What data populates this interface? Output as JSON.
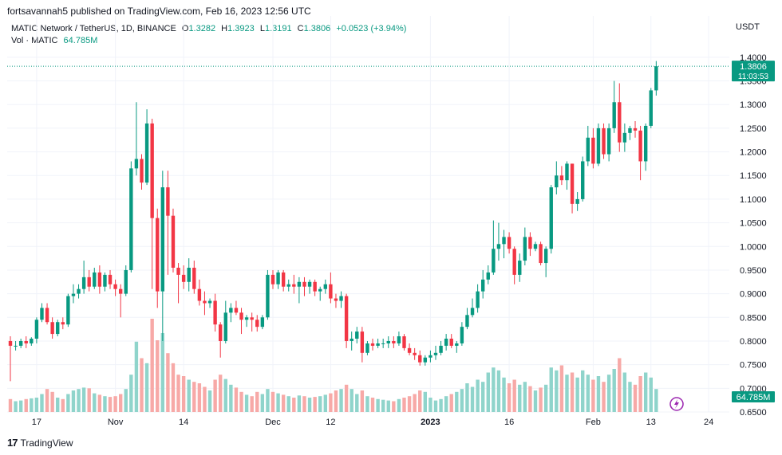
{
  "header": {
    "publisher_line": "fortsavannah5 published on TradingView.com, Feb 16, 2023 12:56 UTC"
  },
  "legend": {
    "symbol": "MATIC Network / TetherUS, 1D, BINANCE",
    "open_label": "O",
    "open": "1.3282",
    "high_label": "H",
    "high": "1.3923",
    "low_label": "L",
    "low": "1.3191",
    "close_label": "C",
    "close": "1.3806",
    "change": "+0.0523 (+3.94%)",
    "vol_label": "Vol · MATIC",
    "vol_value": "64.785M"
  },
  "currency": "USDT",
  "price_tag": {
    "price": "1.3806",
    "countdown": "11:03:53"
  },
  "volume_tag": "64.785M",
  "footer": {
    "brand": "TradingView",
    "logo": "17"
  },
  "colors": {
    "up": "#089981",
    "down": "#f23645",
    "vol_up": "#8fd4cb",
    "vol_down": "#f7a9a7",
    "grid": "#f0f3fa",
    "text": "#131722"
  },
  "chart_data": {
    "type": "candlestick",
    "ylim": [
      0.65,
      1.42
    ],
    "y_ticks": [
      "1.4000",
      "1.3500",
      "1.3000",
      "1.2500",
      "1.2000",
      "1.1500",
      "1.1000",
      "1.0500",
      "1.0000",
      "0.9500",
      "0.9000",
      "0.8500",
      "0.8000",
      "0.7500",
      "0.7000",
      "0.6500"
    ],
    "x_ticks": [
      {
        "label": "17",
        "index": 5
      },
      {
        "label": "Nov",
        "index": 20
      },
      {
        "label": "14",
        "index": 33
      },
      {
        "label": "Dec",
        "index": 50
      },
      {
        "label": "12",
        "index": 61
      },
      {
        "label": "2023",
        "index": 80
      },
      {
        "label": "16",
        "index": 95
      },
      {
        "label": "Feb",
        "index": 111
      },
      {
        "label": "13",
        "index": 122
      },
      {
        "label": "24",
        "index": 133
      }
    ],
    "candles": [
      {
        "o": 0.8,
        "h": 0.81,
        "l": 0.715,
        "c": 0.79,
        "v": 0.18
      },
      {
        "o": 0.79,
        "h": 0.8,
        "l": 0.78,
        "c": 0.79,
        "v": 0.15
      },
      {
        "o": 0.79,
        "h": 0.805,
        "l": 0.785,
        "c": 0.8,
        "v": 0.16
      },
      {
        "o": 0.8,
        "h": 0.81,
        "l": 0.785,
        "c": 0.795,
        "v": 0.18
      },
      {
        "o": 0.795,
        "h": 0.808,
        "l": 0.79,
        "c": 0.805,
        "v": 0.19
      },
      {
        "o": 0.805,
        "h": 0.85,
        "l": 0.795,
        "c": 0.845,
        "v": 0.2
      },
      {
        "o": 0.845,
        "h": 0.88,
        "l": 0.84,
        "c": 0.87,
        "v": 0.25
      },
      {
        "o": 0.87,
        "h": 0.88,
        "l": 0.835,
        "c": 0.84,
        "v": 0.32
      },
      {
        "o": 0.84,
        "h": 0.85,
        "l": 0.805,
        "c": 0.815,
        "v": 0.28
      },
      {
        "o": 0.815,
        "h": 0.845,
        "l": 0.81,
        "c": 0.84,
        "v": 0.2
      },
      {
        "o": 0.84,
        "h": 0.85,
        "l": 0.825,
        "c": 0.835,
        "v": 0.18
      },
      {
        "o": 0.835,
        "h": 0.9,
        "l": 0.83,
        "c": 0.895,
        "v": 0.25
      },
      {
        "o": 0.895,
        "h": 0.92,
        "l": 0.88,
        "c": 0.9,
        "v": 0.3
      },
      {
        "o": 0.9,
        "h": 0.92,
        "l": 0.89,
        "c": 0.91,
        "v": 0.32
      },
      {
        "o": 0.91,
        "h": 0.97,
        "l": 0.9,
        "c": 0.935,
        "v": 0.34
      },
      {
        "o": 0.935,
        "h": 0.95,
        "l": 0.905,
        "c": 0.915,
        "v": 0.33
      },
      {
        "o": 0.915,
        "h": 0.955,
        "l": 0.91,
        "c": 0.945,
        "v": 0.26
      },
      {
        "o": 0.945,
        "h": 0.96,
        "l": 0.9,
        "c": 0.915,
        "v": 0.24
      },
      {
        "o": 0.915,
        "h": 0.945,
        "l": 0.905,
        "c": 0.94,
        "v": 0.22
      },
      {
        "o": 0.94,
        "h": 0.95,
        "l": 0.91,
        "c": 0.92,
        "v": 0.21
      },
      {
        "o": 0.92,
        "h": 0.93,
        "l": 0.895,
        "c": 0.91,
        "v": 0.22
      },
      {
        "o": 0.91,
        "h": 0.92,
        "l": 0.85,
        "c": 0.9,
        "v": 0.25
      },
      {
        "o": 0.9,
        "h": 0.96,
        "l": 0.895,
        "c": 0.95,
        "v": 0.32
      },
      {
        "o": 0.95,
        "h": 1.18,
        "l": 0.945,
        "c": 1.165,
        "v": 0.52
      },
      {
        "o": 1.165,
        "h": 1.305,
        "l": 1.15,
        "c": 1.185,
        "v": 0.98
      },
      {
        "o": 1.185,
        "h": 1.195,
        "l": 1.12,
        "c": 1.135,
        "v": 0.75
      },
      {
        "o": 1.135,
        "h": 1.29,
        "l": 1.13,
        "c": 1.26,
        "v": 0.68
      },
      {
        "o": 1.26,
        "h": 1.27,
        "l": 0.91,
        "c": 1.06,
        "v": 1.3
      },
      {
        "o": 1.06,
        "h": 1.08,
        "l": 0.87,
        "c": 0.905,
        "v": 1.0
      },
      {
        "o": 0.905,
        "h": 1.16,
        "l": 0.8,
        "c": 1.125,
        "v": 1.1
      },
      {
        "o": 1.125,
        "h": 1.16,
        "l": 0.94,
        "c": 1.065,
        "v": 0.82
      },
      {
        "o": 1.065,
        "h": 1.08,
        "l": 0.945,
        "c": 0.955,
        "v": 0.68
      },
      {
        "o": 0.955,
        "h": 0.965,
        "l": 0.88,
        "c": 0.94,
        "v": 0.52
      },
      {
        "o": 0.94,
        "h": 0.96,
        "l": 0.91,
        "c": 0.925,
        "v": 0.5
      },
      {
        "o": 0.925,
        "h": 0.975,
        "l": 0.905,
        "c": 0.955,
        "v": 0.45
      },
      {
        "o": 0.955,
        "h": 0.97,
        "l": 0.9,
        "c": 0.91,
        "v": 0.42
      },
      {
        "o": 0.91,
        "h": 0.93,
        "l": 0.875,
        "c": 0.885,
        "v": 0.4
      },
      {
        "o": 0.885,
        "h": 0.905,
        "l": 0.855,
        "c": 0.88,
        "v": 0.35
      },
      {
        "o": 0.88,
        "h": 0.89,
        "l": 0.87,
        "c": 0.885,
        "v": 0.3
      },
      {
        "o": 0.885,
        "h": 0.9,
        "l": 0.82,
        "c": 0.835,
        "v": 0.45
      },
      {
        "o": 0.835,
        "h": 0.84,
        "l": 0.765,
        "c": 0.8,
        "v": 0.52
      },
      {
        "o": 0.8,
        "h": 0.885,
        "l": 0.795,
        "c": 0.86,
        "v": 0.46
      },
      {
        "o": 0.86,
        "h": 0.88,
        "l": 0.84,
        "c": 0.87,
        "v": 0.38
      },
      {
        "o": 0.87,
        "h": 0.885,
        "l": 0.855,
        "c": 0.86,
        "v": 0.34
      },
      {
        "o": 0.86,
        "h": 0.87,
        "l": 0.815,
        "c": 0.845,
        "v": 0.28
      },
      {
        "o": 0.845,
        "h": 0.855,
        "l": 0.83,
        "c": 0.85,
        "v": 0.24
      },
      {
        "o": 0.85,
        "h": 0.86,
        "l": 0.82,
        "c": 0.845,
        "v": 0.22
      },
      {
        "o": 0.845,
        "h": 0.855,
        "l": 0.82,
        "c": 0.83,
        "v": 0.28
      },
      {
        "o": 0.83,
        "h": 0.855,
        "l": 0.825,
        "c": 0.85,
        "v": 0.25
      },
      {
        "o": 0.85,
        "h": 0.95,
        "l": 0.845,
        "c": 0.94,
        "v": 0.32
      },
      {
        "o": 0.94,
        "h": 0.95,
        "l": 0.91,
        "c": 0.92,
        "v": 0.28
      },
      {
        "o": 0.92,
        "h": 0.95,
        "l": 0.91,
        "c": 0.945,
        "v": 0.26
      },
      {
        "o": 0.945,
        "h": 0.95,
        "l": 0.905,
        "c": 0.915,
        "v": 0.24
      },
      {
        "o": 0.915,
        "h": 0.93,
        "l": 0.905,
        "c": 0.92,
        "v": 0.22
      },
      {
        "o": 0.92,
        "h": 0.94,
        "l": 0.9,
        "c": 0.915,
        "v": 0.2
      },
      {
        "o": 0.915,
        "h": 0.935,
        "l": 0.88,
        "c": 0.925,
        "v": 0.23
      },
      {
        "o": 0.925,
        "h": 0.935,
        "l": 0.895,
        "c": 0.915,
        "v": 0.22
      },
      {
        "o": 0.915,
        "h": 0.93,
        "l": 0.9,
        "c": 0.925,
        "v": 0.2
      },
      {
        "o": 0.925,
        "h": 0.93,
        "l": 0.895,
        "c": 0.905,
        "v": 0.21
      },
      {
        "o": 0.905,
        "h": 0.915,
        "l": 0.885,
        "c": 0.91,
        "v": 0.22
      },
      {
        "o": 0.91,
        "h": 0.93,
        "l": 0.9,
        "c": 0.92,
        "v": 0.24
      },
      {
        "o": 0.92,
        "h": 0.945,
        "l": 0.88,
        "c": 0.89,
        "v": 0.26
      },
      {
        "o": 0.89,
        "h": 0.9,
        "l": 0.87,
        "c": 0.885,
        "v": 0.3
      },
      {
        "o": 0.885,
        "h": 0.905,
        "l": 0.87,
        "c": 0.895,
        "v": 0.32
      },
      {
        "o": 0.895,
        "h": 0.9,
        "l": 0.785,
        "c": 0.8,
        "v": 0.38
      },
      {
        "o": 0.8,
        "h": 0.82,
        "l": 0.78,
        "c": 0.805,
        "v": 0.32
      },
      {
        "o": 0.805,
        "h": 0.83,
        "l": 0.795,
        "c": 0.82,
        "v": 0.25
      },
      {
        "o": 0.82,
        "h": 0.83,
        "l": 0.755,
        "c": 0.775,
        "v": 0.3
      },
      {
        "o": 0.775,
        "h": 0.8,
        "l": 0.77,
        "c": 0.795,
        "v": 0.22
      },
      {
        "o": 0.795,
        "h": 0.805,
        "l": 0.78,
        "c": 0.79,
        "v": 0.2
      },
      {
        "o": 0.79,
        "h": 0.805,
        "l": 0.785,
        "c": 0.795,
        "v": 0.18
      },
      {
        "o": 0.795,
        "h": 0.805,
        "l": 0.785,
        "c": 0.795,
        "v": 0.17
      },
      {
        "o": 0.795,
        "h": 0.81,
        "l": 0.785,
        "c": 0.8,
        "v": 0.16
      },
      {
        "o": 0.8,
        "h": 0.81,
        "l": 0.785,
        "c": 0.795,
        "v": 0.15
      },
      {
        "o": 0.795,
        "h": 0.82,
        "l": 0.79,
        "c": 0.81,
        "v": 0.18
      },
      {
        "o": 0.81,
        "h": 0.815,
        "l": 0.78,
        "c": 0.785,
        "v": 0.2
      },
      {
        "o": 0.785,
        "h": 0.795,
        "l": 0.77,
        "c": 0.775,
        "v": 0.22
      },
      {
        "o": 0.775,
        "h": 0.785,
        "l": 0.76,
        "c": 0.77,
        "v": 0.25
      },
      {
        "o": 0.77,
        "h": 0.78,
        "l": 0.748,
        "c": 0.755,
        "v": 0.3
      },
      {
        "o": 0.755,
        "h": 0.77,
        "l": 0.748,
        "c": 0.765,
        "v": 0.28
      },
      {
        "o": 0.765,
        "h": 0.78,
        "l": 0.755,
        "c": 0.77,
        "v": 0.2
      },
      {
        "o": 0.77,
        "h": 0.79,
        "l": 0.76,
        "c": 0.775,
        "v": 0.16
      },
      {
        "o": 0.775,
        "h": 0.8,
        "l": 0.77,
        "c": 0.79,
        "v": 0.18
      },
      {
        "o": 0.79,
        "h": 0.815,
        "l": 0.78,
        "c": 0.805,
        "v": 0.22
      },
      {
        "o": 0.805,
        "h": 0.815,
        "l": 0.785,
        "c": 0.79,
        "v": 0.25
      },
      {
        "o": 0.79,
        "h": 0.8,
        "l": 0.775,
        "c": 0.795,
        "v": 0.28
      },
      {
        "o": 0.795,
        "h": 0.84,
        "l": 0.79,
        "c": 0.83,
        "v": 0.32
      },
      {
        "o": 0.83,
        "h": 0.87,
        "l": 0.825,
        "c": 0.855,
        "v": 0.4
      },
      {
        "o": 0.855,
        "h": 0.89,
        "l": 0.85,
        "c": 0.87,
        "v": 0.35
      },
      {
        "o": 0.87,
        "h": 0.92,
        "l": 0.86,
        "c": 0.905,
        "v": 0.45
      },
      {
        "o": 0.905,
        "h": 0.95,
        "l": 0.89,
        "c": 0.93,
        "v": 0.42
      },
      {
        "o": 0.93,
        "h": 0.96,
        "l": 0.92,
        "c": 0.945,
        "v": 0.55
      },
      {
        "o": 0.945,
        "h": 1.055,
        "l": 0.94,
        "c": 0.995,
        "v": 0.62
      },
      {
        "o": 0.995,
        "h": 1.05,
        "l": 0.97,
        "c": 1.005,
        "v": 0.58
      },
      {
        "o": 1.005,
        "h": 1.035,
        "l": 0.975,
        "c": 1.02,
        "v": 0.48
      },
      {
        "o": 1.02,
        "h": 1.03,
        "l": 0.985,
        "c": 0.995,
        "v": 0.4
      },
      {
        "o": 0.995,
        "h": 1.0,
        "l": 0.92,
        "c": 0.94,
        "v": 0.45
      },
      {
        "o": 0.94,
        "h": 0.985,
        "l": 0.925,
        "c": 0.97,
        "v": 0.38
      },
      {
        "o": 0.97,
        "h": 1.04,
        "l": 0.96,
        "c": 1.02,
        "v": 0.42
      },
      {
        "o": 1.02,
        "h": 1.03,
        "l": 0.98,
        "c": 0.995,
        "v": 0.36
      },
      {
        "o": 0.995,
        "h": 1.01,
        "l": 0.99,
        "c": 1.005,
        "v": 0.3
      },
      {
        "o": 1.005,
        "h": 1.01,
        "l": 0.96,
        "c": 0.965,
        "v": 0.34
      },
      {
        "o": 0.965,
        "h": 1.0,
        "l": 0.935,
        "c": 0.995,
        "v": 0.38
      },
      {
        "o": 0.995,
        "h": 1.13,
        "l": 0.985,
        "c": 1.125,
        "v": 0.62
      },
      {
        "o": 1.125,
        "h": 1.18,
        "l": 1.11,
        "c": 1.15,
        "v": 0.58
      },
      {
        "o": 1.15,
        "h": 1.17,
        "l": 1.13,
        "c": 1.14,
        "v": 0.65
      },
      {
        "o": 1.14,
        "h": 1.18,
        "l": 1.12,
        "c": 1.175,
        "v": 0.52
      },
      {
        "o": 1.175,
        "h": 1.175,
        "l": 1.07,
        "c": 1.09,
        "v": 0.55
      },
      {
        "o": 1.09,
        "h": 1.115,
        "l": 1.075,
        "c": 1.1,
        "v": 0.48
      },
      {
        "o": 1.1,
        "h": 1.19,
        "l": 1.095,
        "c": 1.18,
        "v": 0.58
      },
      {
        "o": 1.18,
        "h": 1.255,
        "l": 1.17,
        "c": 1.23,
        "v": 0.52
      },
      {
        "o": 1.23,
        "h": 1.25,
        "l": 1.165,
        "c": 1.175,
        "v": 0.45
      },
      {
        "o": 1.175,
        "h": 1.26,
        "l": 1.17,
        "c": 1.25,
        "v": 0.5
      },
      {
        "o": 1.25,
        "h": 1.26,
        "l": 1.185,
        "c": 1.195,
        "v": 0.42
      },
      {
        "o": 1.195,
        "h": 1.26,
        "l": 1.18,
        "c": 1.25,
        "v": 0.52
      },
      {
        "o": 1.25,
        "h": 1.35,
        "l": 1.24,
        "c": 1.305,
        "v": 0.6
      },
      {
        "o": 1.305,
        "h": 1.345,
        "l": 1.2,
        "c": 1.22,
        "v": 0.75
      },
      {
        "o": 1.22,
        "h": 1.26,
        "l": 1.2,
        "c": 1.24,
        "v": 0.55
      },
      {
        "o": 1.24,
        "h": 1.255,
        "l": 1.225,
        "c": 1.25,
        "v": 0.42
      },
      {
        "o": 1.25,
        "h": 1.265,
        "l": 1.23,
        "c": 1.245,
        "v": 0.38
      },
      {
        "o": 1.245,
        "h": 1.255,
        "l": 1.14,
        "c": 1.18,
        "v": 0.5
      },
      {
        "o": 1.18,
        "h": 1.26,
        "l": 1.16,
        "c": 1.255,
        "v": 0.55
      },
      {
        "o": 1.255,
        "h": 1.335,
        "l": 1.25,
        "c": 1.33,
        "v": 0.48
      },
      {
        "o": 1.33,
        "h": 1.392,
        "l": 1.319,
        "c": 1.381,
        "v": 0.32
      }
    ]
  }
}
